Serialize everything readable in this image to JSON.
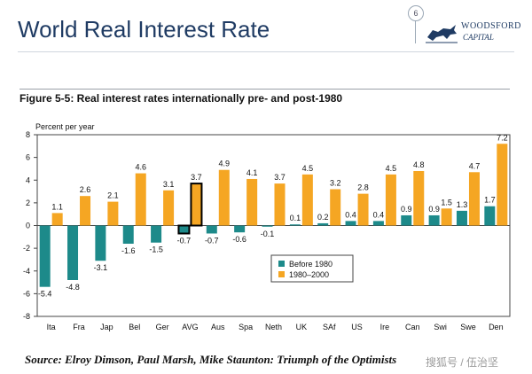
{
  "slide": {
    "title": "World Real Interest Rate",
    "page_number": "6",
    "logo_line1": "WOODSFORD",
    "logo_line2": "CAPITAL",
    "source": "Source: Elroy Dimson, Paul Marsh, Mike Staunton: Triumph of the Optimists",
    "watermark": "搜狐号 / 伍治坚"
  },
  "colors": {
    "title": "#1f3b63",
    "before_1980": "#1d8a8a",
    "after_1980": "#f5a623",
    "highlight_outline": "#000000"
  },
  "chart_data": {
    "type": "bar",
    "title": "Figure 5-5: Real interest rates internationally pre- and post-1980",
    "ylabel": "Percent per year",
    "ylim": [
      -8,
      8
    ],
    "yticks": [
      8,
      6,
      4,
      2,
      0,
      -2,
      -4,
      -6,
      -8
    ],
    "categories": [
      "Ita",
      "Fra",
      "Jap",
      "Bel",
      "Ger",
      "AVG",
      "Aus",
      "Spa",
      "Neth",
      "UK",
      "SAf",
      "US",
      "Ire",
      "Can",
      "Swi",
      "Swe",
      "Den"
    ],
    "series": [
      {
        "name": "Before 1980",
        "values": [
          -5.4,
          -4.8,
          -3.1,
          -1.6,
          -1.5,
          -0.7,
          -0.7,
          -0.6,
          -0.1,
          0.1,
          0.2,
          0.4,
          0.4,
          0.9,
          0.9,
          1.3,
          1.7
        ]
      },
      {
        "name": "1980–2000",
        "values": [
          1.1,
          2.6,
          2.1,
          4.6,
          3.1,
          3.7,
          4.9,
          4.1,
          3.7,
          4.5,
          3.2,
          2.8,
          4.5,
          4.8,
          1.5,
          4.7,
          7.2
        ]
      }
    ],
    "highlighted_category": "AVG",
    "legend_position": "center",
    "grid": false
  }
}
